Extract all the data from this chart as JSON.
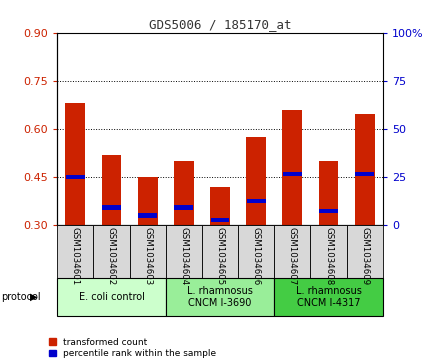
{
  "title": "GDS5006 / 185170_at",
  "samples": [
    "GSM1034601",
    "GSM1034602",
    "GSM1034603",
    "GSM1034604",
    "GSM1034605",
    "GSM1034606",
    "GSM1034607",
    "GSM1034608",
    "GSM1034609"
  ],
  "red_tops": [
    0.68,
    0.52,
    0.45,
    0.5,
    0.42,
    0.575,
    0.66,
    0.5,
    0.645
  ],
  "blue_values": [
    0.45,
    0.355,
    0.33,
    0.355,
    0.315,
    0.375,
    0.46,
    0.345,
    0.46
  ],
  "bar_bottom": 0.3,
  "ylim_left": [
    0.3,
    0.9
  ],
  "ylim_right": [
    0,
    100
  ],
  "yticks_left": [
    0.3,
    0.45,
    0.6,
    0.75,
    0.9
  ],
  "yticks_right": [
    0,
    25,
    50,
    75,
    100
  ],
  "right_tick_labels": [
    "0",
    "25",
    "50",
    "75",
    "100%"
  ],
  "protocols": [
    {
      "label": "E. coli control",
      "start": 0,
      "end": 3,
      "color": "#ccffcc"
    },
    {
      "label": "L. rhamnosus\nCNCM I-3690",
      "start": 3,
      "end": 6,
      "color": "#99ee99"
    },
    {
      "label": "L. rhamnosus\nCNCM I-4317",
      "start": 6,
      "end": 9,
      "color": "#44cc44"
    }
  ],
  "protocol_label": "protocol",
  "legend_red": "transformed count",
  "legend_blue": "percentile rank within the sample",
  "bar_color": "#cc2200",
  "blue_color": "#0000cc",
  "bar_width": 0.55,
  "grid_color": "#000000",
  "title_color": "#333333",
  "left_tick_color": "#cc2200",
  "right_tick_color": "#0000cc",
  "bg_color": "#d8d8d8"
}
